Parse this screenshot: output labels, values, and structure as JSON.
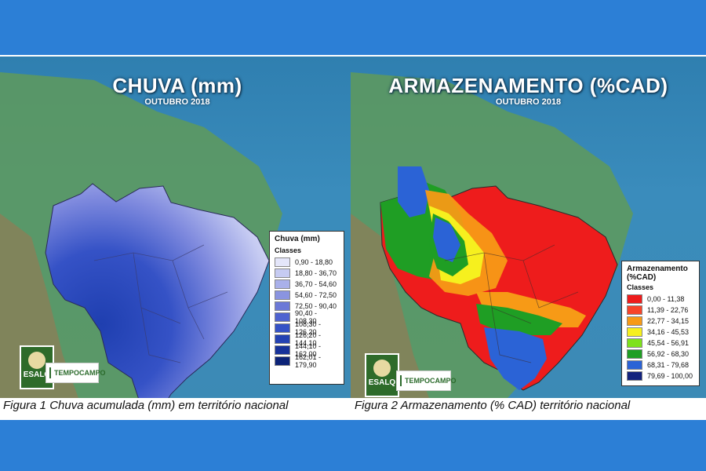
{
  "figure1": {
    "title": "CHUVA (mm)",
    "subtitle": "OUTUBRO 2018",
    "caption": "Figura 1 Chuva acumulada (mm) em território nacional",
    "legend": {
      "title": "Chuva (mm)",
      "subtitle": "Classes",
      "items": [
        {
          "label": "0,90 - 18,80",
          "color": "#e4e6fa"
        },
        {
          "label": "18,80 - 36,70",
          "color": "#c6cbf2"
        },
        {
          "label": "36,70 - 54,60",
          "color": "#a9b0ea"
        },
        {
          "label": "54,60 - 72,50",
          "color": "#8a94e0"
        },
        {
          "label": "72,50 - 90,40",
          "color": "#6c79d7"
        },
        {
          "label": "90,40 - 108,30",
          "color": "#4f63d0"
        },
        {
          "label": "108,30 - 126,20",
          "color": "#3552c6"
        },
        {
          "label": "126,20 - 144,10",
          "color": "#2442b3"
        },
        {
          "label": "144,10 - 162,00",
          "color": "#17329a"
        },
        {
          "label": "162,01 - 179,90",
          "color": "#0c2378"
        }
      ]
    }
  },
  "figure2": {
    "title": "ARMAZENAMENTO (%CAD)",
    "subtitle": "OUTUBRO 2018",
    "caption": "Figura 2 Armazenamento (% CAD) território nacional",
    "legend": {
      "title": "Armazenamento",
      "title2": "(%CAD)",
      "subtitle": "Classes",
      "items": [
        {
          "label": "0,00 - 11,38",
          "color": "#ee1c1c"
        },
        {
          "label": "11,39 - 22,76",
          "color": "#f7442a"
        },
        {
          "label": "22,77 - 34,15",
          "color": "#f79a16"
        },
        {
          "label": "34,16 - 45,53",
          "color": "#f6f01e"
        },
        {
          "label": "45,54 - 56,91",
          "color": "#7ee21c"
        },
        {
          "label": "56,92 - 68,30",
          "color": "#1f9e24"
        },
        {
          "label": "68,31 - 79,68",
          "color": "#2b63d6"
        },
        {
          "label": "79,69 - 100,00",
          "color": "#13237e"
        }
      ]
    }
  },
  "logos": {
    "esalq": "ESALQ",
    "partner": "TEMPOCAMPO"
  }
}
